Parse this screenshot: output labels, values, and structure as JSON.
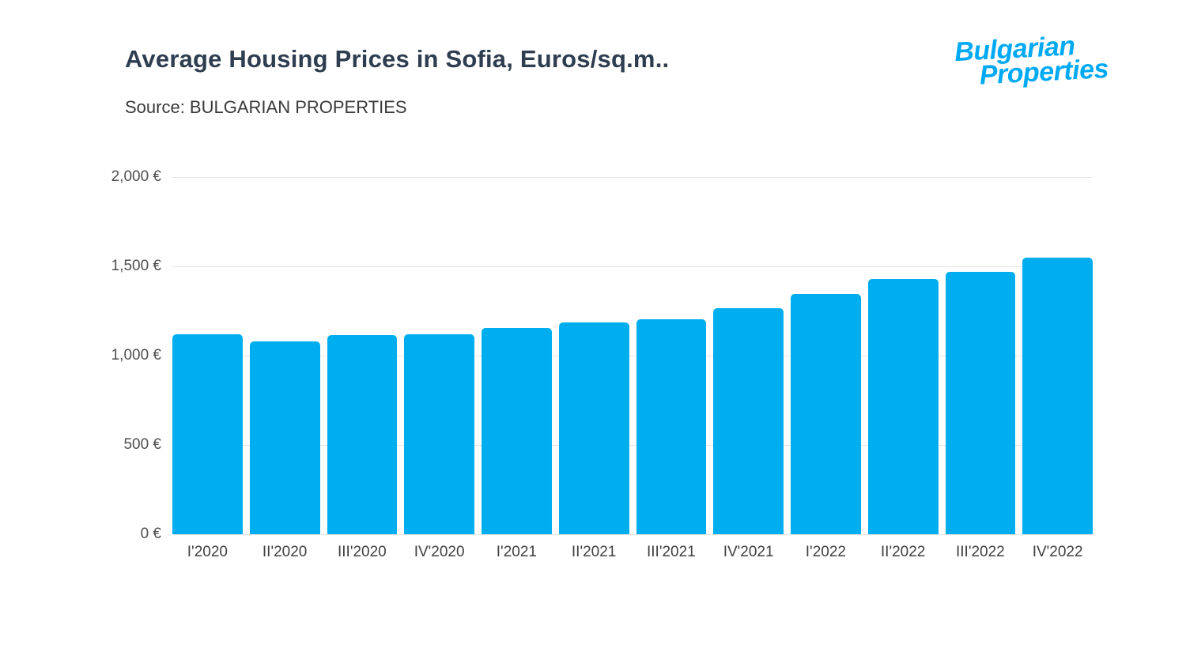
{
  "header": {
    "title": "Average Housing Prices in Sofia, Euros/sq.m..",
    "source": "Source: BULGARIAN PROPERTIES"
  },
  "logo": {
    "line1": "Bulgarian",
    "line2": "Properties",
    "color": "#00a9f4"
  },
  "chart_data": {
    "type": "bar",
    "title": "Average Housing Prices in Sofia, Euros/sq.m..",
    "source": "Source: BULGARIAN PROPERTIES",
    "categories": [
      "I'2020",
      "II'2020",
      "III'2020",
      "IV'2020",
      "I'2021",
      "II'2021",
      "III'2021",
      "IV'2021",
      "I'2022",
      "II'2022",
      "III'2022",
      "IV'2022"
    ],
    "values": [
      1120,
      1080,
      1115,
      1120,
      1155,
      1185,
      1205,
      1265,
      1345,
      1430,
      1470,
      1550
    ],
    "y_ticks": [
      {
        "label": "2,000 €",
        "value": 2000
      },
      {
        "label": "1,500 €",
        "value": 1500
      },
      {
        "label": "1,000 €",
        "value": 1000
      },
      {
        "label": "500 €",
        "value": 500
      },
      {
        "label": "0 €",
        "value": 0
      }
    ],
    "ylim": [
      0,
      2000
    ],
    "xlabel": "",
    "ylabel": "",
    "bar_color": "#00aeef",
    "grid": true,
    "legend_position": "none"
  }
}
